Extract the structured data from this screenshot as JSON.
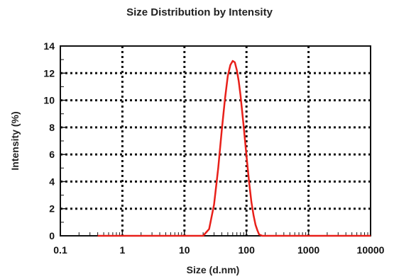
{
  "chart_data": {
    "type": "line",
    "title": "Size Distribution by Intensity",
    "xlabel": "Size (d.nm)",
    "ylabel": "Intensity (%)",
    "xscale": "log",
    "xlim": [
      0.1,
      10000
    ],
    "ylim": [
      0,
      14
    ],
    "grid": "dotted",
    "x_ticks": [
      "0.1",
      "1",
      "10",
      "100",
      "1000",
      "10000"
    ],
    "y_ticks": [
      "0",
      "2",
      "4",
      "6",
      "8",
      "10",
      "12",
      "14"
    ],
    "series": [
      {
        "color": "#e8201a",
        "x": [
          0.4,
          1,
          5,
          15,
          20,
          25,
          30,
          35,
          40,
          45,
          50,
          55,
          60,
          65,
          70,
          75,
          80,
          90,
          100,
          110,
          120,
          130,
          140,
          150,
          160,
          180,
          200,
          250,
          400,
          1000,
          10000
        ],
        "y": [
          0,
          0,
          0,
          0,
          0,
          0.5,
          2.3,
          5.0,
          7.8,
          10.1,
          11.8,
          12.6,
          12.9,
          12.8,
          12.2,
          11.4,
          10.4,
          8.1,
          5.9,
          4.0,
          2.5,
          1.5,
          0.8,
          0.4,
          0.1,
          0,
          0,
          0,
          0,
          0,
          0
        ]
      }
    ]
  }
}
